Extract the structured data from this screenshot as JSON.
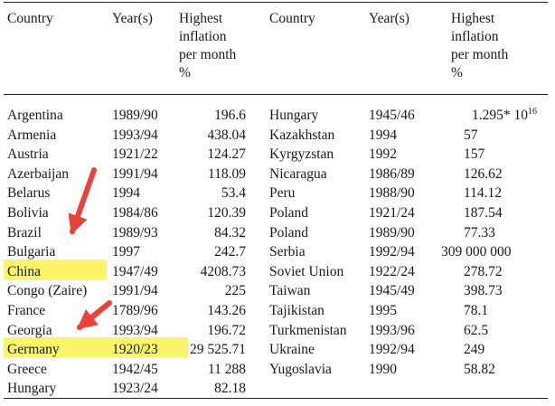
{
  "headers": {
    "country": "Country",
    "years": "Year(s)",
    "inflation": "Highest\ninflation\nper month\n%"
  },
  "left_rows": [
    {
      "country": "Argentina",
      "years": "1989/90",
      "value": "196.6"
    },
    {
      "country": "Armenia",
      "years": "1993/94",
      "value": "438.04"
    },
    {
      "country": "Austria",
      "years": "1921/22",
      "value": "124.27"
    },
    {
      "country": "Azerbaijan",
      "years": "1991/94",
      "value": "118.09"
    },
    {
      "country": "Belarus",
      "years": "1994",
      "value": "53.4"
    },
    {
      "country": "Bolivia",
      "years": "1984/86",
      "value": "120.39"
    },
    {
      "country": "Brazil",
      "years": "1989/93",
      "value": "84.32"
    },
    {
      "country": "Bulgaria",
      "years": "1997",
      "value": "242.7"
    },
    {
      "country": "China",
      "years": "1947/49",
      "value": "4208.73"
    },
    {
      "country": "Congo (Zaire)",
      "years": "1991/94",
      "value": "225"
    },
    {
      "country": "France",
      "years": "1789/96",
      "value": "143.26"
    },
    {
      "country": "Georgia",
      "years": "1993/94",
      "value": "196.72"
    },
    {
      "country": "Germany",
      "years": "1920/23",
      "value": "29 525.71"
    },
    {
      "country": "Greece",
      "years": "1942/45",
      "value": "11 288"
    },
    {
      "country": "Hungary",
      "years": "1923/24",
      "value": "82.18"
    }
  ],
  "right_rows": [
    {
      "country": "Hungary",
      "years": "1945/46",
      "value": "1.295*",
      "exp_base": "10",
      "exp_power": "16"
    },
    {
      "country": "Kazakhstan",
      "years": "1994",
      "value": "57"
    },
    {
      "country": "Kyrgyzstan",
      "years": "1992",
      "value": "157"
    },
    {
      "country": "Nicaragua",
      "years": "1986/89",
      "value": "126.62"
    },
    {
      "country": "Peru",
      "years": "1988/90",
      "value": "114.12"
    },
    {
      "country": "Poland",
      "years": "1921/24",
      "value": "187.54"
    },
    {
      "country": "Poland",
      "years": "1989/90",
      "value": "77.33"
    },
    {
      "country": "Serbia",
      "years": "1992/94",
      "value": "309 000 000"
    },
    {
      "country": "Soviet Union",
      "years": "1922/24",
      "value": "278.72"
    },
    {
      "country": "Taiwan",
      "years": "1945/49",
      "value": "398.73"
    },
    {
      "country": "Tajikistan",
      "years": "1995",
      "value": "78.1"
    },
    {
      "country": "Turkmenistan",
      "years": "1993/96",
      "value": "62.5"
    },
    {
      "country": "Ukraine",
      "years": "1992/94",
      "value": "249"
    },
    {
      "country": "Yugoslavia",
      "years": "1990",
      "value": "58.82"
    }
  ],
  "highlight_color": "#fbf56a",
  "arrow_color": "#e8423a"
}
